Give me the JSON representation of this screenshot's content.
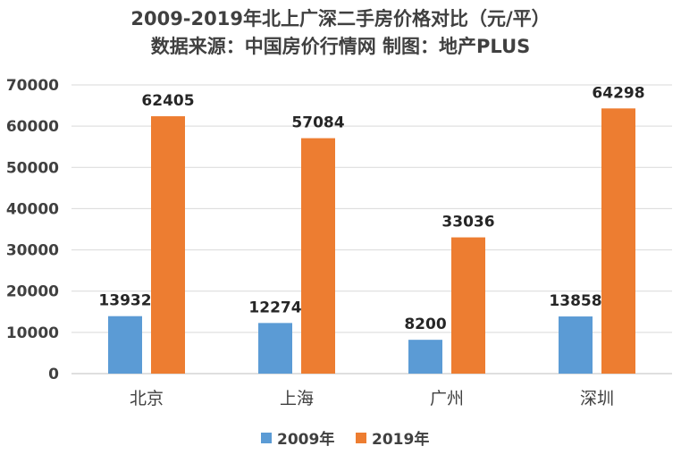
{
  "chart_data": {
    "type": "bar",
    "title": "2009-2019年北上广深二手房价格对比（元/平）",
    "subtitle": "数据来源：中国房价行情网 制图：地产PLUS",
    "categories": [
      "北京",
      "上海",
      "广州",
      "深圳"
    ],
    "series": [
      {
        "name": "2009年",
        "values": [
          13932,
          12274,
          8200,
          13858
        ],
        "color": "#5b9bd5"
      },
      {
        "name": "2019年",
        "values": [
          62405,
          57084,
          33036,
          64298
        ],
        "color": "#ed7d31"
      }
    ],
    "yticks": [
      0,
      10000,
      20000,
      30000,
      40000,
      50000,
      60000,
      70000
    ],
    "ylim": [
      0,
      70000
    ],
    "grid": true,
    "legend": "bottom",
    "xlabel": "",
    "ylabel": ""
  }
}
